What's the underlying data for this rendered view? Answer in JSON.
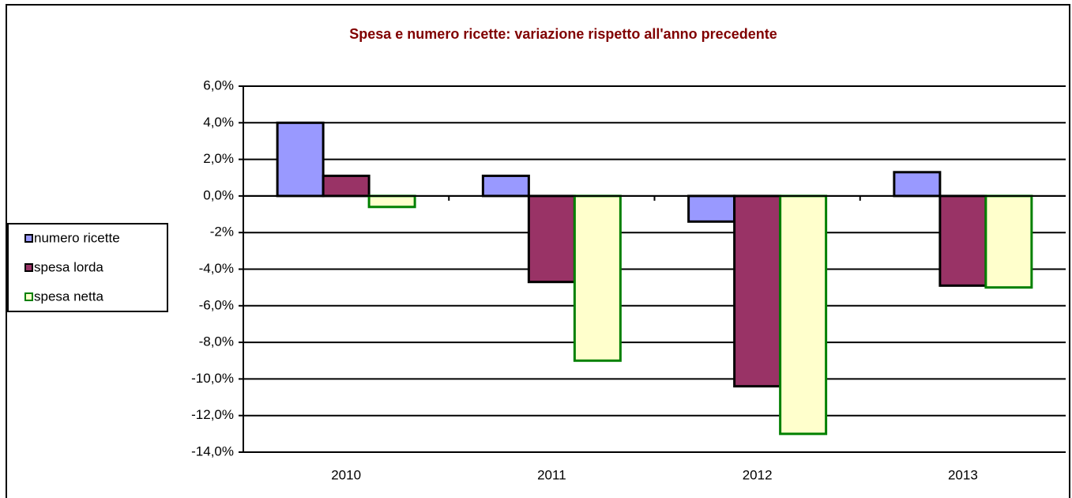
{
  "chart_data": {
    "type": "bar",
    "title": "Spesa e numero ricette: variazione rispetto all'anno precedente",
    "categories": [
      "2010",
      "2011",
      "2012",
      "2013"
    ],
    "series": [
      {
        "name": "numero ricette",
        "color": "#9999ff",
        "edgecolor": "#000000",
        "values": [
          4.0,
          1.1,
          -1.4,
          1.3
        ]
      },
      {
        "name": "spesa lorda",
        "color": "#993366",
        "edgecolor": "#000000",
        "values": [
          1.1,
          -4.7,
          -10.4,
          -4.9
        ]
      },
      {
        "name": "spesa netta",
        "color": "#ffffcc",
        "edgecolor": "#008000",
        "values": [
          -0.6,
          -9.0,
          -13.0,
          -5.0
        ]
      }
    ],
    "ylim": [
      -14,
      6
    ],
    "yticks": [
      {
        "value": 6,
        "label": "6,0%"
      },
      {
        "value": 4,
        "label": "4,0%"
      },
      {
        "value": 2,
        "label": "2,0%"
      },
      {
        "value": 0,
        "label": "0,0%"
      },
      {
        "value": -2,
        "label": "-2%"
      },
      {
        "value": -4,
        "label": "-4,0%"
      },
      {
        "value": -6,
        "label": "-6,0%"
      },
      {
        "value": -8,
        "label": "-8,0%"
      },
      {
        "value": -10,
        "label": "-10,0%"
      },
      {
        "value": -12,
        "label": "-12,0%"
      },
      {
        "value": -14,
        "label": "-14,0%"
      }
    ],
    "grid": true,
    "legend": "left"
  }
}
